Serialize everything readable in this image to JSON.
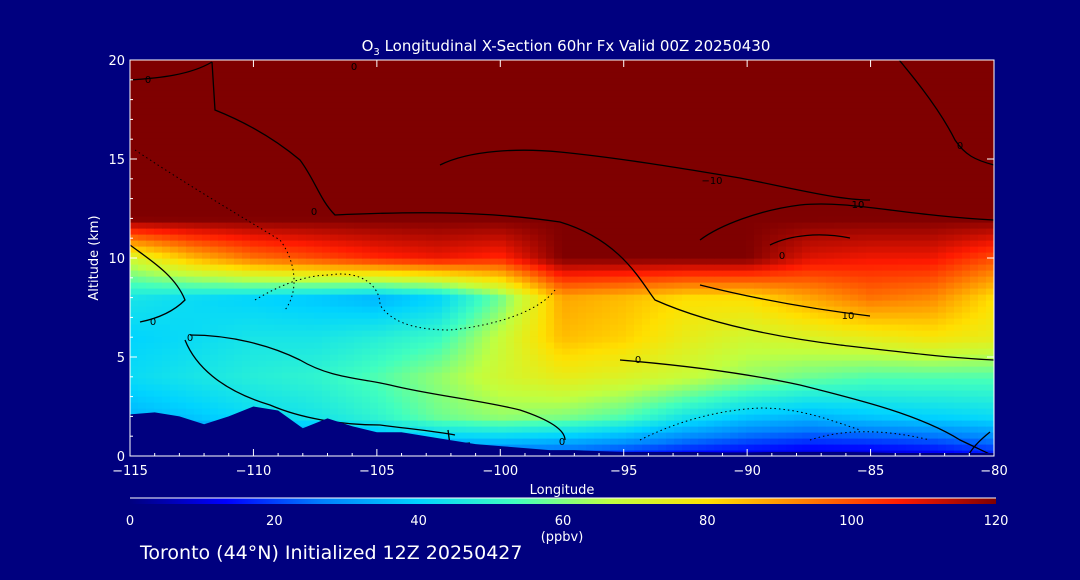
{
  "chart_data": {
    "type": "heatmap",
    "title": {
      "species": "O",
      "subscript": "3",
      "rest": " Longitudinal X-Section 60hr  Fx Valid 00Z 20250430"
    },
    "xlabel": "Longitude",
    "ylabel": "Altitude (km)",
    "xlim": [
      -115,
      -80
    ],
    "ylim": [
      0,
      20
    ],
    "x_ticks": [
      -115,
      -110,
      -105,
      -100,
      -95,
      -90,
      -85,
      -80
    ],
    "x_tick_labels": [
      "−115",
      "−110",
      "−105",
      "−100",
      "−95",
      "−90",
      "−85",
      "−80"
    ],
    "y_ticks": [
      0,
      5,
      10,
      15,
      20
    ],
    "y_tick_labels": [
      "0",
      "5",
      "10",
      "15",
      "20"
    ],
    "colorbar": {
      "label": "(ppbv)",
      "min": 0,
      "max": 120,
      "ticks": [
        0,
        20,
        40,
        60,
        80,
        100,
        120
      ],
      "tick_labels": [
        "0",
        "20",
        "40",
        "60",
        "80",
        "100",
        "120"
      ],
      "colors": [
        "#00007f",
        "#0000ff",
        "#0080ff",
        "#00d4ff",
        "#40ffbf",
        "#c0ff40",
        "#ffe000",
        "#ff8000",
        "#ff1a00",
        "#7f0000"
      ]
    },
    "contour_labels": [
      "0",
      "0",
      "0",
      "0",
      "0",
      "0",
      "0",
      "0",
      "0",
      "−10",
      "10",
      "10",
      "10"
    ],
    "ozone_ppbv": {
      "longitudes": [
        -115,
        -112.5,
        -110,
        -107.5,
        -105,
        -102.5,
        -100,
        -97.5,
        -95,
        -92.5,
        -90,
        -87.5,
        -85,
        -82.5,
        -80
      ],
      "altitudes_km": [
        0,
        2,
        4,
        6,
        8,
        10,
        12,
        14,
        16,
        18,
        20
      ],
      "values": [
        [
          10,
          12,
          15,
          18,
          20,
          22,
          20,
          18,
          15,
          12,
          10,
          8,
          8,
          10,
          15
        ],
        [
          35,
          38,
          42,
          45,
          50,
          58,
          62,
          60,
          55,
          45,
          38,
          35,
          38,
          40,
          42
        ],
        [
          42,
          45,
          48,
          50,
          55,
          62,
          70,
          75,
          72,
          68,
          62,
          58,
          55,
          55,
          55
        ],
        [
          40,
          42,
          45,
          45,
          48,
          52,
          68,
          85,
          82,
          75,
          70,
          72,
          75,
          78,
          75
        ],
        [
          45,
          42,
          40,
          38,
          35,
          40,
          58,
          88,
          85,
          80,
          80,
          88,
          95,
          92,
          80
        ],
        [
          70,
          85,
          95,
          100,
          105,
          108,
          105,
          120,
          120,
          120,
          120,
          110,
          108,
          108,
          100
        ],
        [
          120,
          120,
          120,
          120,
          120,
          120,
          120,
          120,
          120,
          120,
          120,
          120,
          120,
          120,
          120
        ],
        [
          120,
          120,
          120,
          120,
          120,
          120,
          120,
          120,
          120,
          120,
          120,
          120,
          120,
          120,
          120
        ],
        [
          120,
          120,
          120,
          120,
          120,
          120,
          120,
          120,
          120,
          120,
          120,
          120,
          120,
          120,
          120
        ],
        [
          120,
          120,
          120,
          120,
          120,
          120,
          120,
          120,
          120,
          120,
          120,
          120,
          120,
          120,
          120
        ],
        [
          120,
          120,
          120,
          120,
          120,
          120,
          120,
          120,
          120,
          120,
          120,
          120,
          120,
          120,
          120
        ]
      ]
    },
    "terrain_km": {
      "longitudes": [
        -115,
        -114,
        -113,
        -112,
        -111,
        -110,
        -109,
        -108,
        -107,
        -106,
        -105,
        -104,
        -103,
        -102,
        -101,
        -100,
        -99,
        -98,
        -97,
        -96,
        -95,
        -94,
        -93,
        -92,
        -91,
        -90,
        -89,
        -88,
        -87,
        -86,
        -85,
        -84,
        -83,
        -82,
        -81,
        -80
      ],
      "heights": [
        2.1,
        2.2,
        2.0,
        1.6,
        2.0,
        2.5,
        2.3,
        1.4,
        1.9,
        1.5,
        1.2,
        1.2,
        1.0,
        0.8,
        0.6,
        0.5,
        0.4,
        0.3,
        0.3,
        0.25,
        0.2,
        0.2,
        0.2,
        0.2,
        0.18,
        0.18,
        0.2,
        0.2,
        0.2,
        0.2,
        0.18,
        0.15,
        0.15,
        0.15,
        0.15,
        0.15
      ]
    }
  },
  "footer": {
    "text": "Toronto (44°N) Initialized 12Z 20250427"
  },
  "colors": {
    "background": "#00007f",
    "text": "#ffffff",
    "terrain": "#00007f",
    "contour": "#000000"
  }
}
